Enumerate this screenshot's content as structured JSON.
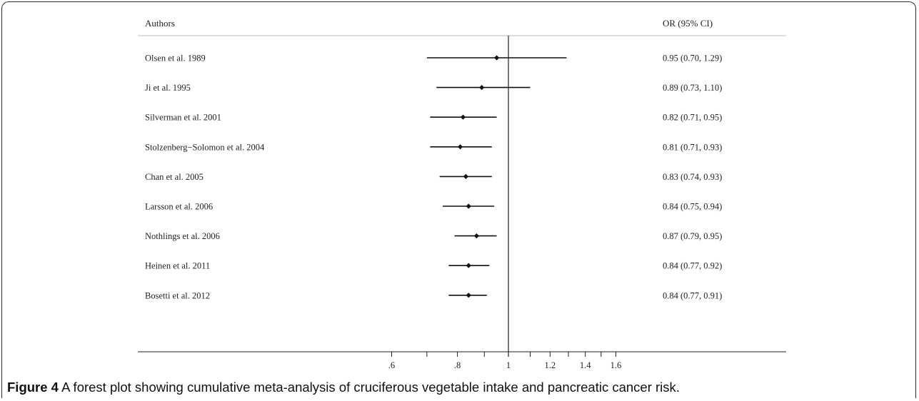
{
  "figure": {
    "label": "Figure 4",
    "caption": "A forest plot showing cumulative meta-analysis of cruciferous vegetable intake and pancreatic cancer risk."
  },
  "chart_data": {
    "type": "forest",
    "column_left_header": "Authors",
    "column_right_header": "OR (95% CI)",
    "x_scale": "log",
    "xlim": [
      0.51,
      2.25
    ],
    "reference_line": 1,
    "x_ticks": [
      {
        "value": 0.6,
        "label": ".6"
      },
      {
        "value": 0.7,
        "label": ""
      },
      {
        "value": 0.8,
        "label": ".8"
      },
      {
        "value": 0.9,
        "label": ""
      },
      {
        "value": 1.0,
        "label": "1"
      },
      {
        "value": 1.1,
        "label": ""
      },
      {
        "value": 1.2,
        "label": "1.2"
      },
      {
        "value": 1.3,
        "label": ""
      },
      {
        "value": 1.4,
        "label": "1.4"
      },
      {
        "value": 1.5,
        "label": ""
      },
      {
        "value": 1.6,
        "label": "1.6"
      }
    ],
    "studies": [
      {
        "label": "Olsen et al. 1989",
        "or": 0.95,
        "lo": 0.7,
        "hi": 1.29,
        "text": "0.95 (0.70, 1.29)"
      },
      {
        "label": "Ji et al. 1995",
        "or": 0.89,
        "lo": 0.73,
        "hi": 1.1,
        "text": "0.89 (0.73, 1.10)"
      },
      {
        "label": "Silverman et al. 2001",
        "or": 0.82,
        "lo": 0.71,
        "hi": 0.95,
        "text": "0.82 (0.71, 0.95)"
      },
      {
        "label": "Stolzenberg−Solomon et al. 2004",
        "or": 0.81,
        "lo": 0.71,
        "hi": 0.93,
        "text": "0.81 (0.71, 0.93)"
      },
      {
        "label": "Chan et al. 2005",
        "or": 0.83,
        "lo": 0.74,
        "hi": 0.93,
        "text": "0.83 (0.74, 0.93)"
      },
      {
        "label": "Larsson et al. 2006",
        "or": 0.84,
        "lo": 0.75,
        "hi": 0.94,
        "text": "0.84 (0.75, 0.94)"
      },
      {
        "label": "Nothlings et al. 2006",
        "or": 0.87,
        "lo": 0.79,
        "hi": 0.95,
        "text": "0.87 (0.79, 0.95)"
      },
      {
        "label": "Heinen et al. 2011",
        "or": 0.84,
        "lo": 0.77,
        "hi": 0.92,
        "text": "0.84 (0.77, 0.92)"
      },
      {
        "label": "Bosetti et al. 2012",
        "or": 0.84,
        "lo": 0.77,
        "hi": 0.91,
        "text": "0.84 (0.77, 0.91)"
      }
    ]
  }
}
